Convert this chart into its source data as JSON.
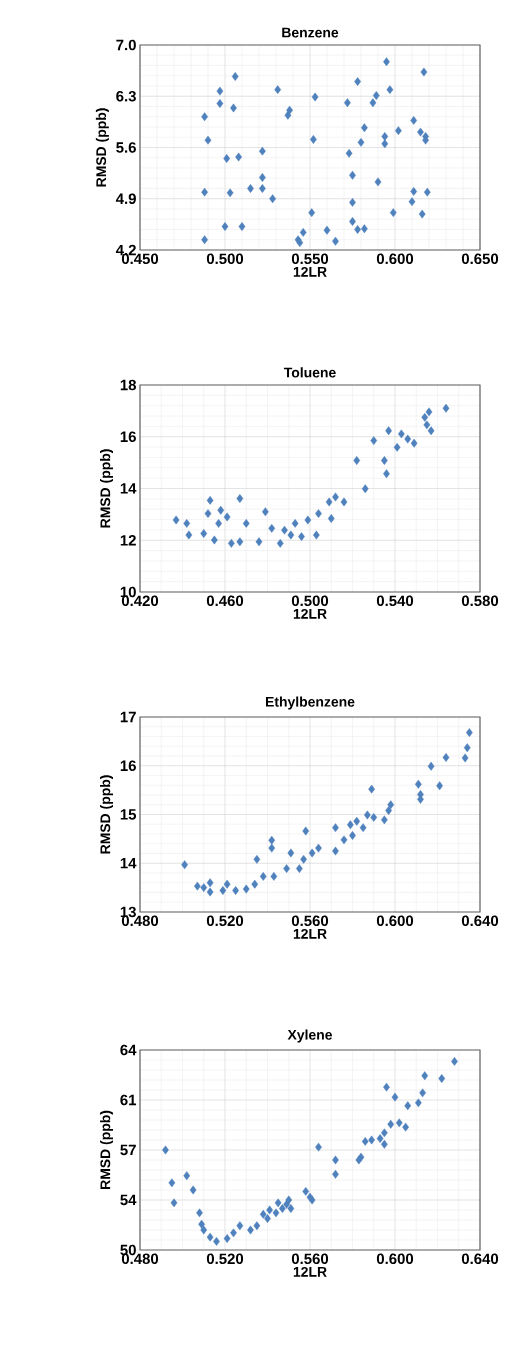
{
  "chart_data": [
    {
      "type": "scatter",
      "title": "Benzene",
      "xlabel": "12LR",
      "ylabel": "RMSD (ppb)",
      "color": "#4f81bd",
      "marker": "diamond",
      "grid": true,
      "xlim": [
        0.45,
        0.65
      ],
      "ylim": [
        4.2,
        7.0
      ],
      "xticks": [
        {
          "value": 0.45,
          "label": "0.450"
        },
        {
          "value": 0.5,
          "label": "0.500"
        },
        {
          "value": 0.55,
          "label": "0.550"
        },
        {
          "value": 0.6,
          "label": "0.600"
        },
        {
          "value": 0.65,
          "label": "0.650"
        }
      ],
      "yticks": [
        4.2,
        4.9,
        5.6,
        6.3,
        {
          "value": 7.0,
          "label": "7.0"
        }
      ],
      "x": [
        0.595,
        0.617,
        0.506,
        0.578,
        0.497,
        0.531,
        0.597,
        0.553,
        0.589,
        0.497,
        0.505,
        0.572,
        0.587,
        0.538,
        0.537,
        0.488,
        0.611,
        0.582,
        0.602,
        0.615,
        0.618,
        0.594,
        0.594,
        0.58,
        0.49,
        0.552,
        0.618,
        0.522,
        0.573,
        0.501,
        0.508,
        0.575,
        0.522,
        0.59,
        0.515,
        0.522,
        0.488,
        0.503,
        0.528,
        0.611,
        0.619,
        0.61,
        0.575,
        0.551,
        0.599,
        0.616,
        0.5,
        0.51,
        0.575,
        0.578,
        0.582,
        0.56,
        0.488,
        0.543,
        0.546,
        0.544,
        0.565
      ],
      "values": [
        6.77,
        6.63,
        6.57,
        6.5,
        6.37,
        6.39,
        6.39,
        6.29,
        6.31,
        6.2,
        6.14,
        6.21,
        6.21,
        6.11,
        6.04,
        6.02,
        5.97,
        5.87,
        5.83,
        5.81,
        5.75,
        5.75,
        5.65,
        5.67,
        5.7,
        5.71,
        5.7,
        5.55,
        5.52,
        5.45,
        5.47,
        5.22,
        5.19,
        5.13,
        5.04,
        5.04,
        4.99,
        4.98,
        4.9,
        5.0,
        4.99,
        4.86,
        4.85,
        4.71,
        4.71,
        4.69,
        4.52,
        4.52,
        4.59,
        4.48,
        4.49,
        4.47,
        4.34,
        4.34,
        4.44,
        4.3,
        4.32
      ]
    },
    {
      "type": "scatter",
      "title": "Toluene",
      "xlabel": "12LR",
      "ylabel": "RMSD (ppb)",
      "color": "#4f81bd",
      "marker": "diamond",
      "grid": true,
      "xlim": [
        0.42,
        0.58
      ],
      "ylim": [
        10,
        18
      ],
      "xticks": [
        {
          "value": 0.42,
          "label": "0.420"
        },
        {
          "value": 0.46,
          "label": "0.460"
        },
        {
          "value": 0.5,
          "label": "0.500"
        },
        {
          "value": 0.54,
          "label": "0.540"
        },
        {
          "value": 0.58,
          "label": "0.580"
        }
      ],
      "yticks": [
        10,
        12,
        14,
        16,
        18
      ],
      "x": [
        0.564,
        0.556,
        0.554,
        0.557,
        0.555,
        0.537,
        0.543,
        0.549,
        0.546,
        0.53,
        0.541,
        0.522,
        0.535,
        0.536,
        0.526,
        0.512,
        0.516,
        0.509,
        0.51,
        0.504,
        0.499,
        0.503,
        0.493,
        0.488,
        0.486,
        0.491,
        0.479,
        0.467,
        0.467,
        0.463,
        0.47,
        0.461,
        0.458,
        0.453,
        0.452,
        0.45,
        0.455,
        0.457,
        0.443,
        0.442,
        0.437,
        0.496,
        0.482,
        0.476
      ],
      "values": [
        17.1,
        16.96,
        16.75,
        16.23,
        16.46,
        16.23,
        16.11,
        15.75,
        15.91,
        15.85,
        15.59,
        15.08,
        15.08,
        14.57,
        13.99,
        13.67,
        13.48,
        13.48,
        12.84,
        13.03,
        12.78,
        12.2,
        12.65,
        12.39,
        11.88,
        12.2,
        13.1,
        13.61,
        11.94,
        11.88,
        12.65,
        12.9,
        13.16,
        13.54,
        13.03,
        12.26,
        12.01,
        12.65,
        12.2,
        12.65,
        12.78,
        12.14,
        12.46,
        11.94
      ]
    },
    {
      "type": "scatter",
      "title": "Ethylbenzene",
      "xlabel": "12LR",
      "ylabel": "RMSD (ppb)",
      "color": "#4f81bd",
      "marker": "diamond",
      "grid": true,
      "xlim": [
        0.48,
        0.64
      ],
      "ylim": [
        13,
        17
      ],
      "xticks": [
        {
          "value": 0.48,
          "label": "0.480"
        },
        {
          "value": 0.52,
          "label": "0.520"
        },
        {
          "value": 0.56,
          "label": "0.560"
        },
        {
          "value": 0.6,
          "label": "0.600"
        },
        {
          "value": 0.64,
          "label": "0.640"
        }
      ],
      "yticks": [
        13,
        14,
        15,
        16,
        17
      ],
      "x": [
        0.635,
        0.634,
        0.633,
        0.624,
        0.617,
        0.611,
        0.621,
        0.612,
        0.612,
        0.589,
        0.598,
        0.597,
        0.595,
        0.587,
        0.59,
        0.582,
        0.579,
        0.585,
        0.572,
        0.58,
        0.576,
        0.572,
        0.564,
        0.558,
        0.561,
        0.557,
        0.551,
        0.555,
        0.542,
        0.542,
        0.535,
        0.549,
        0.543,
        0.538,
        0.534,
        0.53,
        0.525,
        0.521,
        0.519,
        0.513,
        0.513,
        0.51,
        0.507,
        0.501
      ],
      "values": [
        16.68,
        16.37,
        16.16,
        16.17,
        15.99,
        15.62,
        15.59,
        15.41,
        15.31,
        15.52,
        15.2,
        15.08,
        14.89,
        14.99,
        14.94,
        14.86,
        14.79,
        14.73,
        14.73,
        14.57,
        14.48,
        14.25,
        14.31,
        14.66,
        14.21,
        14.08,
        14.21,
        13.89,
        14.47,
        14.31,
        14.08,
        13.89,
        13.73,
        13.73,
        13.57,
        13.47,
        13.44,
        13.57,
        13.44,
        13.41,
        13.6,
        13.5,
        13.53,
        13.97
      ]
    },
    {
      "type": "scatter",
      "title": "Xylene",
      "xlabel": "12LR",
      "ylabel": "RMSD (ppb)",
      "color": "#4f81bd",
      "marker": "diamond",
      "grid": true,
      "xlim": [
        0.48,
        0.64
      ],
      "ylim": [
        50,
        64
      ],
      "xticks": [
        {
          "value": 0.48,
          "label": "0.480"
        },
        {
          "value": 0.52,
          "label": "0.520"
        },
        {
          "value": 0.56,
          "label": "0.560"
        },
        {
          "value": 0.6,
          "label": "0.600"
        },
        {
          "value": 0.64,
          "label": "0.640"
        }
      ],
      "yticks": [
        50,
        {
          "value": 53.5,
          "label": "54"
        },
        57,
        {
          "value": 60.5,
          "label": "61"
        },
        64
      ],
      "x": [
        0.628,
        0.614,
        0.622,
        0.596,
        0.6,
        0.613,
        0.611,
        0.606,
        0.602,
        0.605,
        0.598,
        0.595,
        0.593,
        0.595,
        0.589,
        0.586,
        0.584,
        0.583,
        0.564,
        0.572,
        0.572,
        0.561,
        0.492,
        0.495,
        0.502,
        0.505,
        0.496,
        0.508,
        0.509,
        0.51,
        0.513,
        0.516,
        0.521,
        0.524,
        0.527,
        0.532,
        0.535,
        0.54,
        0.544,
        0.547,
        0.549,
        0.55,
        0.551,
        0.545,
        0.541,
        0.538,
        0.558,
        0.56
      ],
      "values": [
        63.2,
        62.2,
        62.0,
        61.4,
        60.7,
        61.0,
        60.3,
        60.1,
        58.9,
        58.6,
        58.8,
        58.2,
        57.8,
        57.4,
        57.7,
        57.6,
        56.5,
        56.3,
        57.2,
        56.3,
        55.3,
        53.5,
        57.0,
        54.7,
        55.2,
        54.2,
        53.3,
        52.6,
        51.8,
        51.4,
        50.9,
        50.6,
        50.8,
        51.2,
        51.7,
        51.4,
        51.7,
        52.2,
        52.6,
        52.9,
        53.2,
        53.5,
        52.9,
        53.3,
        52.8,
        52.5,
        54.1,
        53.7
      ]
    }
  ]
}
